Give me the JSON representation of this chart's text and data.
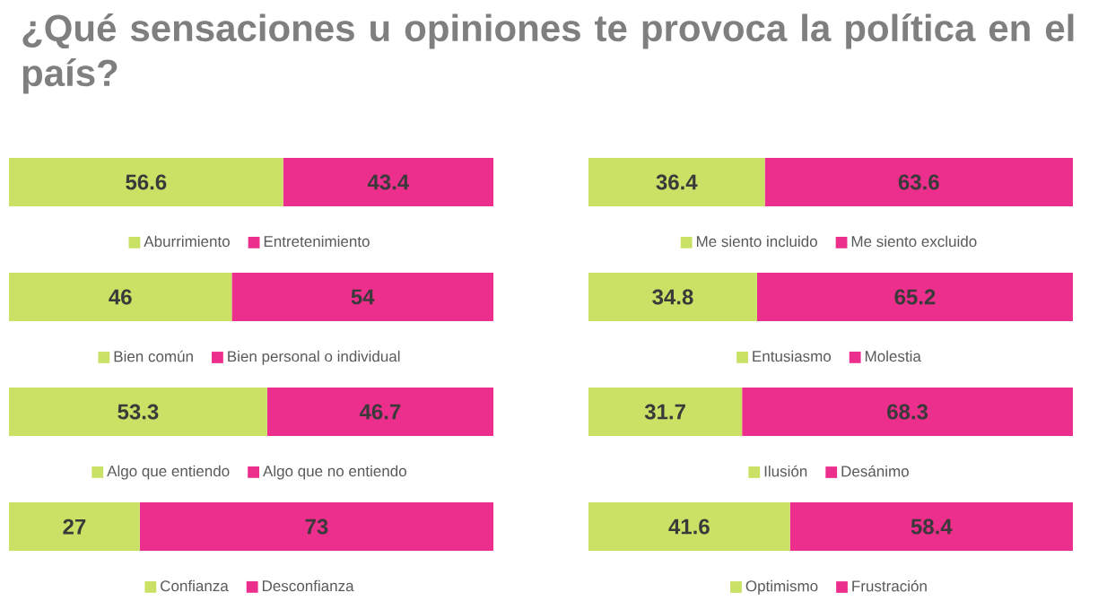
{
  "chart_data": [
    {
      "type": "bar",
      "title": "¿Qué sensaciones u opiniones te provoca la política en el país?",
      "orientation": "horizontal",
      "stacked": true,
      "categories": [
        null
      ],
      "tick_labels": false,
      "data_labels": true,
      "legend": "bottom",
      "series": [
        {
          "name": "Aburrimiento",
          "color": "#c9e265",
          "values": [
            56.6
          ]
        },
        {
          "name": "Entretenimiento",
          "color": "#ec2e8c",
          "values": [
            43.4
          ]
        }
      ]
    },
    {
      "type": "bar",
      "orientation": "horizontal",
      "stacked": true,
      "categories": [
        null
      ],
      "tick_labels": false,
      "data_labels": true,
      "legend": "bottom",
      "series": [
        {
          "name": "Me siento incluido",
          "color": "#c9e265",
          "values": [
            36.4
          ]
        },
        {
          "name": "Me siento excluido",
          "color": "#ec2e8c",
          "values": [
            63.6
          ]
        }
      ]
    },
    {
      "type": "bar",
      "orientation": "horizontal",
      "stacked": true,
      "categories": [
        null
      ],
      "tick_labels": false,
      "data_labels": true,
      "legend": "bottom",
      "series": [
        {
          "name": "Bien común",
          "color": "#c9e265",
          "values": [
            46
          ]
        },
        {
          "name": "Bien personal o individual",
          "color": "#ec2e8c",
          "values": [
            54
          ]
        }
      ]
    },
    {
      "type": "bar",
      "orientation": "horizontal",
      "stacked": true,
      "categories": [
        null
      ],
      "tick_labels": false,
      "data_labels": true,
      "legend": "bottom",
      "series": [
        {
          "name": "Entusiasmo",
          "color": "#c9e265",
          "values": [
            34.8
          ]
        },
        {
          "name": "Molestia",
          "color": "#ec2e8c",
          "values": [
            65.2
          ]
        }
      ]
    },
    {
      "type": "bar",
      "orientation": "horizontal",
      "stacked": true,
      "categories": [
        null
      ],
      "tick_labels": false,
      "data_labels": true,
      "legend": "bottom",
      "series": [
        {
          "name": "Algo que entiendo",
          "color": "#c9e265",
          "values": [
            53.3
          ]
        },
        {
          "name": "Algo que no entiendo",
          "color": "#ec2e8c",
          "values": [
            46.7
          ]
        }
      ]
    },
    {
      "type": "bar",
      "orientation": "horizontal",
      "stacked": true,
      "categories": [
        null
      ],
      "tick_labels": false,
      "data_labels": true,
      "legend": "bottom",
      "series": [
        {
          "name": "Ilusión",
          "color": "#c9e265",
          "values": [
            31.7
          ]
        },
        {
          "name": "Desánimo",
          "color": "#ec2e8c",
          "values": [
            68.3
          ]
        }
      ]
    },
    {
      "type": "bar",
      "orientation": "horizontal",
      "stacked": true,
      "categories": [
        null
      ],
      "tick_labels": false,
      "data_labels": true,
      "legend": "bottom",
      "series": [
        {
          "name": "Confianza",
          "color": "#c9e265",
          "values": [
            27
          ]
        },
        {
          "name": "Desconfianza",
          "color": "#ec2e8c",
          "values": [
            73
          ]
        }
      ]
    },
    {
      "type": "bar",
      "orientation": "horizontal",
      "stacked": true,
      "categories": [
        null
      ],
      "tick_labels": false,
      "data_labels": true,
      "legend": "bottom",
      "series": [
        {
          "name": "Optimismo",
          "color": "#c9e265",
          "values": [
            41.6
          ]
        },
        {
          "name": "Frustración",
          "color": "#ec2e8c",
          "values": [
            58.4
          ]
        }
      ]
    }
  ]
}
